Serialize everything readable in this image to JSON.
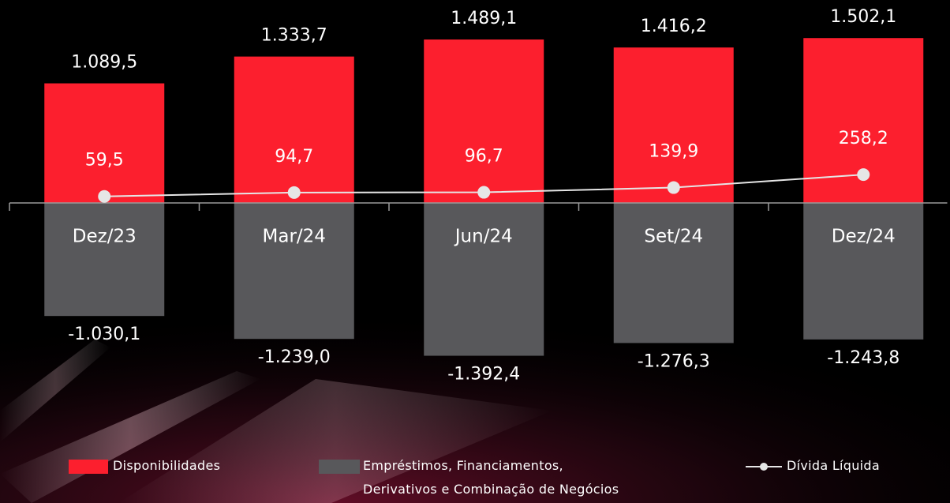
{
  "chart_data": {
    "type": "bar",
    "categories": [
      "Dez/23",
      "Mar/24",
      "Jun/24",
      "Set/24",
      "Dez/24"
    ],
    "series": [
      {
        "name": "Disponibilidades",
        "color": "#fc1f2e",
        "type": "bar",
        "values": [
          1089.5,
          1333.7,
          1489.1,
          1416.2,
          1502.1
        ],
        "value_labels": [
          "1.089,5",
          "1.333,7",
          "1.489,1",
          "1.416,2",
          "1.502,1"
        ]
      },
      {
        "name": "Empréstimos, Financiamentos, Derivativos e Combinação de Negócios",
        "color": "#58585b",
        "type": "bar",
        "values": [
          -1030.1,
          -1239.0,
          -1392.4,
          -1276.3,
          -1243.8
        ],
        "value_labels": [
          "-1.030,1",
          "-1.239,0",
          "-1.392,4",
          "-1.276,3",
          "-1.243,8"
        ]
      },
      {
        "name": "Dívida Líquida",
        "color": "#e6e6e6",
        "type": "line",
        "values": [
          59.5,
          94.7,
          96.7,
          139.9,
          258.2
        ],
        "value_labels": [
          "59,5",
          "94,7",
          "96,7",
          "139,9",
          "258,2"
        ]
      }
    ]
  }
}
